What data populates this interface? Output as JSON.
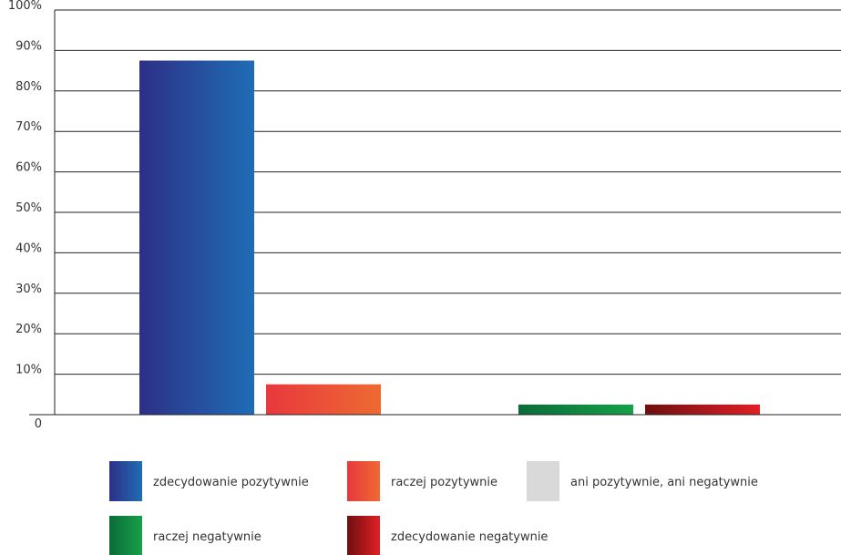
{
  "chart_data": {
    "type": "bar",
    "ylim": [
      0,
      100
    ],
    "y_ticks": [
      "0",
      "10%",
      "20%",
      "30%",
      "40%",
      "50%",
      "60%",
      "70%",
      "80%",
      "90%",
      "100%"
    ],
    "grid": true,
    "legend_position": "bottom",
    "series": [
      {
        "name": "zdecydowanie pozytywnie",
        "values": [
          87.5
        ],
        "color_from": "#2d2f86",
        "color_to": "#1f6db5"
      },
      {
        "name": "raczej pozytywnie",
        "values": [
          7.5
        ],
        "color_from": "#e8383d",
        "color_to": "#ee6a32"
      },
      {
        "name": "ani pozytywnie, ani negatywnie",
        "values": [
          0
        ],
        "color_from": "#d9d9d9",
        "color_to": "#d9d9d9"
      },
      {
        "name": "raczej negatywnie",
        "values": [
          2.5
        ],
        "color_from": "#0b6b38",
        "color_to": "#16a04a"
      },
      {
        "name": "zdecydowanie negatywnie",
        "values": [
          2.5
        ],
        "color_from": "#6e0f10",
        "color_to": "#e21f26"
      }
    ]
  }
}
